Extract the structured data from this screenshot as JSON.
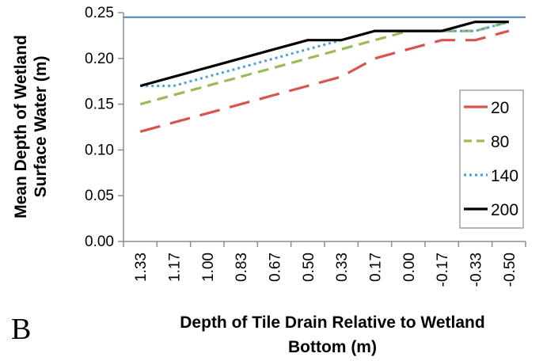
{
  "panel_label": "B",
  "chart_data": {
    "type": "line",
    "ylabel_lines": [
      "Mean Depth of Wetland",
      "Surface Water  (m)"
    ],
    "xlabel_lines": [
      "Depth of Tile Drain Relative to Wetland",
      "Bottom (m)"
    ],
    "categories": [
      "1.33",
      "1.17",
      "1.00",
      "0.83",
      "0.67",
      "0.50",
      "0.33",
      "0.17",
      "0.00",
      "-0.17",
      "-0.33",
      "-0.50"
    ],
    "ylim": [
      0,
      0.25
    ],
    "yticks": [
      "0.00",
      "0.05",
      "0.10",
      "0.15",
      "0.20",
      "0.25"
    ],
    "reference_line": {
      "y": 0.245,
      "color": "#4a7ebb"
    },
    "grid": false,
    "legend_position": "right",
    "series": [
      {
        "name": "20",
        "color": "#d9534f",
        "style": "long-dash",
        "values": [
          0.12,
          0.13,
          0.14,
          0.15,
          0.16,
          0.17,
          0.18,
          0.2,
          0.21,
          0.22,
          0.22,
          0.23
        ]
      },
      {
        "name": "80",
        "color": "#9bbb59",
        "style": "dash",
        "values": [
          0.15,
          0.16,
          0.17,
          0.18,
          0.19,
          0.2,
          0.21,
          0.22,
          0.23,
          0.23,
          0.23,
          0.24
        ]
      },
      {
        "name": "140",
        "color": "#4f9fe0",
        "style": "dot",
        "values": [
          0.17,
          0.17,
          0.18,
          0.19,
          0.2,
          0.21,
          0.22,
          0.23,
          0.23,
          0.23,
          0.23,
          0.24
        ]
      },
      {
        "name": "200",
        "color": "#000000",
        "style": "solid",
        "values": [
          0.17,
          0.18,
          0.19,
          0.2,
          0.21,
          0.22,
          0.22,
          0.23,
          0.23,
          0.23,
          0.24,
          0.24
        ]
      }
    ]
  }
}
